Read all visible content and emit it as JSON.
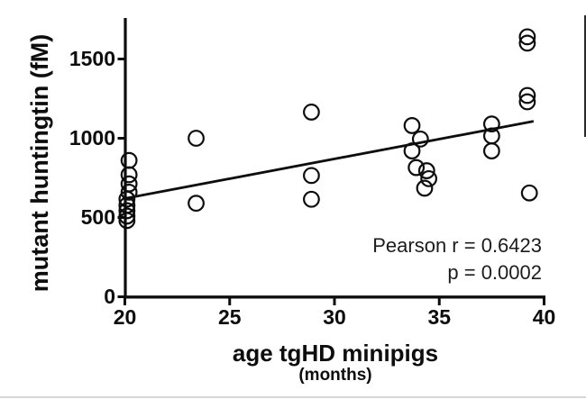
{
  "figure": {
    "y_axis_label": "mutant huntingtin (fM)",
    "x_axis_label": "age tgHD minipigs",
    "x_axis_sublabel": "(months)",
    "annotation_line1": "Pearson r = 0.6423",
    "annotation_line2": "p = 0.0002"
  },
  "colors": {
    "ink": "#0d0d0d",
    "background": "#ffffff"
  },
  "chart_data": {
    "type": "scatter",
    "title": "",
    "xlabel": "age tgHD minipigs (months)",
    "ylabel": "mutant huntingtin (fM)",
    "xlim": [
      20,
      40
    ],
    "ylim": [
      0,
      1750
    ],
    "x_ticks": [
      20,
      25,
      30,
      35,
      40
    ],
    "y_ticks": [
      0,
      500,
      1000,
      1500
    ],
    "grid": false,
    "legend": "none",
    "marker": "open-circle",
    "points": [
      [
        20.2,
        860
      ],
      [
        20.2,
        770
      ],
      [
        20.2,
        712
      ],
      [
        20.2,
        660
      ],
      [
        20.1,
        616
      ],
      [
        20.1,
        577
      ],
      [
        20.1,
        543
      ],
      [
        20.1,
        509
      ],
      [
        20.1,
        481
      ],
      [
        23.4,
        1000
      ],
      [
        23.4,
        590
      ],
      [
        28.9,
        1165
      ],
      [
        28.9,
        765
      ],
      [
        28.9,
        615
      ],
      [
        33.7,
        1080
      ],
      [
        34.1,
        995
      ],
      [
        33.7,
        920
      ],
      [
        33.9,
        815
      ],
      [
        34.4,
        795
      ],
      [
        34.5,
        745
      ],
      [
        34.3,
        685
      ],
      [
        37.5,
        1090
      ],
      [
        37.5,
        1015
      ],
      [
        37.5,
        920
      ],
      [
        39.2,
        1640
      ],
      [
        39.2,
        1600
      ],
      [
        39.2,
        1270
      ],
      [
        39.2,
        1230
      ],
      [
        39.3,
        655
      ]
    ],
    "regression_line": {
      "x1": 20.0,
      "y1": 620,
      "x2": 39.5,
      "y2": 1107
    },
    "annotations": [
      "Pearson r = 0.6423",
      "p = 0.0002"
    ],
    "pearson_r": "0.6423",
    "p_value": "0.0002"
  }
}
